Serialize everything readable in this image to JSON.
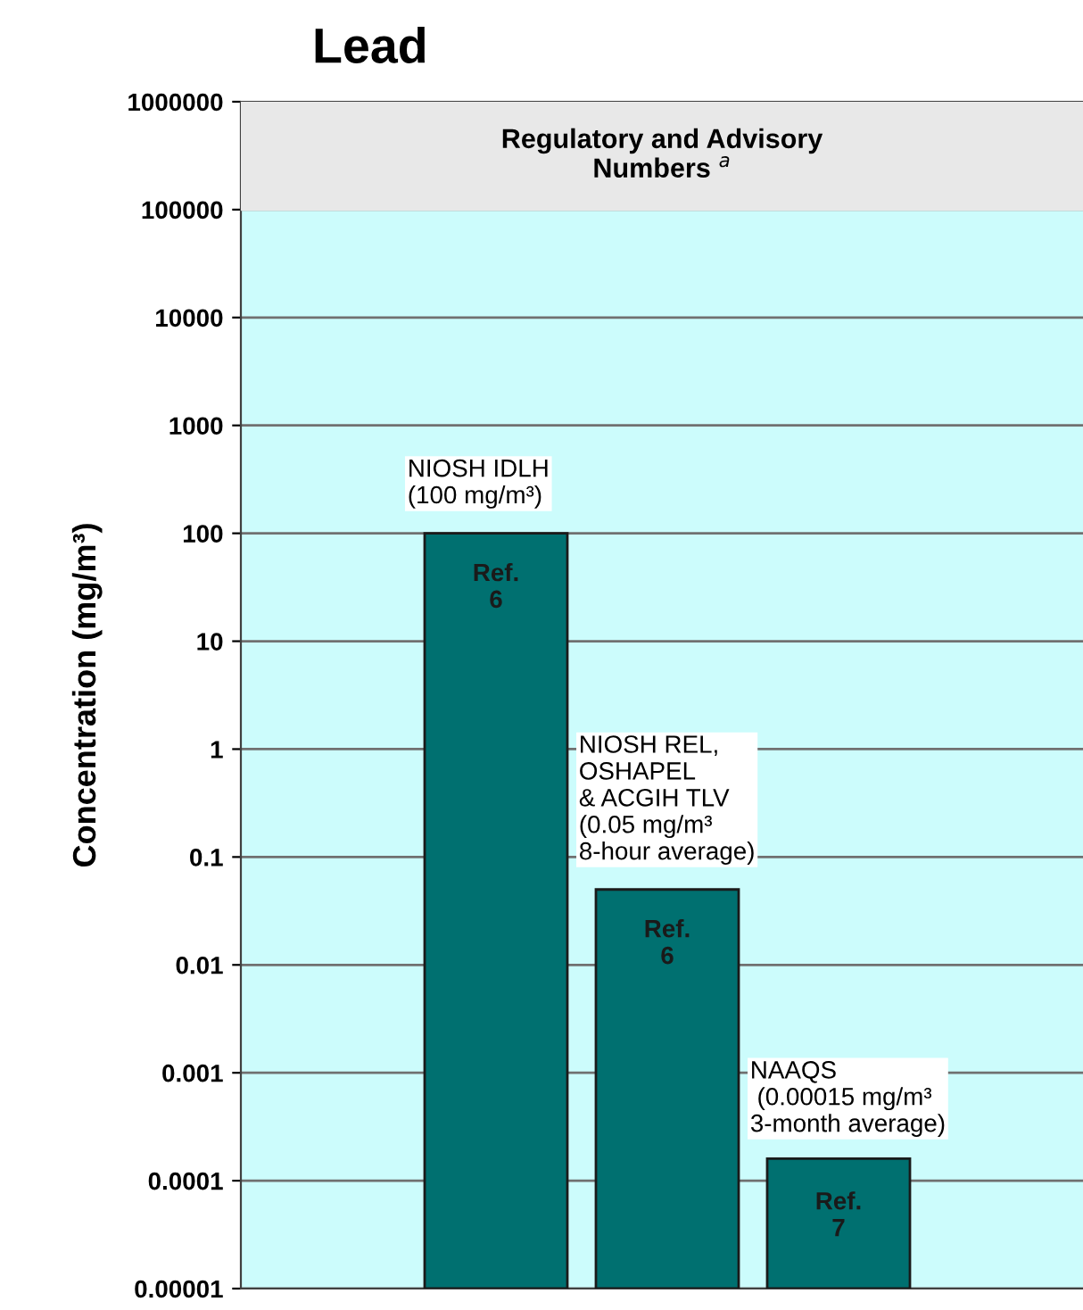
{
  "chart_data": {
    "type": "bar",
    "title": "Lead",
    "ylabel": "Concentration (mg/m³)",
    "categories": [
      null,
      null,
      null
    ],
    "values": [
      100,
      0.05,
      0.00015
    ],
    "color": "#007070",
    "value_labels": [
      "NIOSH IDLH\n(100 mg/m³)",
      "NIOSH REL,\nOSHAPEL\n& ACGIH TLV\n(0.05 mg/m³\n8-hour average)",
      "NAAQS\n (0.00015 mg/m³\n3-month average)"
    ],
    "annotations": [
      "Ref.\n6",
      "Ref.\n6",
      "Ref.\n7"
    ],
    "log": true,
    "ylim": [
      1e-05,
      1000000
    ],
    "yticks": [
      {
        "value": 1e-05,
        "label": "0.00001"
      },
      0.0001,
      0.001,
      0.01,
      0.1,
      1,
      10,
      100,
      1000,
      10000,
      100000,
      1000000
    ],
    "grid": "y",
    "bands": [
      {
        "axis": "y",
        "from": 100000,
        "to": 1000000,
        "label": "Regulatory and Advisory\nNumbers $^{a}$",
        "color": "#e8e8e8"
      }
    ]
  }
}
